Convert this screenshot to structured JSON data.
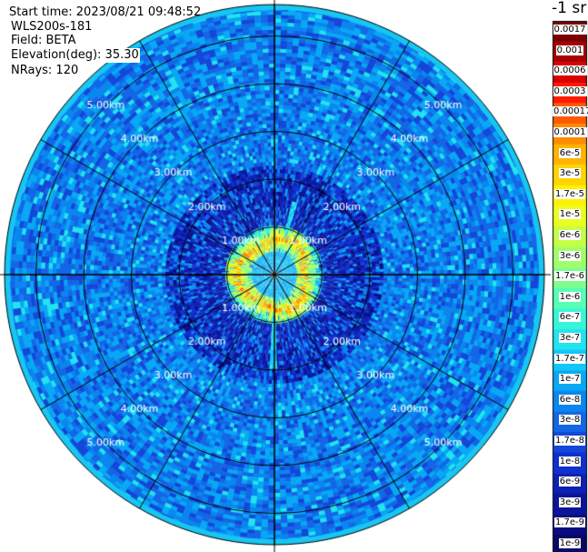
{
  "header": {
    "start_time": "Start time: 2023/08/21 09:48:52",
    "instrument": "WLS200s-181",
    "field": "Field: BETA",
    "elevation": "Elevation(deg): 35.30",
    "nrays": "NRays: 120"
  },
  "colorbar": {
    "units": "-1 sr",
    "labels": [
      "0.0017",
      "0.001",
      "0.0006",
      "0.0003",
      "0.00017",
      "0.0001",
      "6e-5",
      "3e-5",
      "1.7e-5",
      "1e-5",
      "6e-6",
      "3e-6",
      "1.7e-6",
      "1e-6",
      "6e-7",
      "3e-7",
      "1.7e-7",
      "1e-7",
      "6e-8",
      "3e-8",
      "1.7e-8",
      "1e-8",
      "6e-9",
      "3e-9",
      "1.7e-9",
      "1e-9"
    ],
    "colors": [
      "#7a0000",
      "#a80000",
      "#d80000",
      "#ff1a00",
      "#ff5a00",
      "#ff8c00",
      "#ffb300",
      "#ffd400",
      "#fff200",
      "#e9ff21",
      "#c4ff45",
      "#a0ff69",
      "#7cff8d",
      "#55ffb3",
      "#35f7d8",
      "#22e3f0",
      "#12c6f7",
      "#08a8f5",
      "#0a86ef",
      "#1466e6",
      "#1446d8",
      "#1030d0",
      "#0c20b4",
      "#0b149a",
      "#0a0c80",
      "#080866"
    ]
  },
  "chart_data": {
    "type": "heatmap",
    "projection": "polar PPI",
    "field": "BETA",
    "n_rays": 120,
    "range_max_km": 5.6,
    "range_ring_labels": [
      "1.00km",
      "2.00km",
      "3.00km",
      "4.00km",
      "5.00km"
    ],
    "range_rings_km": [
      1,
      2,
      3,
      4,
      5
    ],
    "azimuth_spokes_deg": [
      0,
      30,
      60,
      90,
      120,
      150,
      180,
      210,
      240,
      270,
      300,
      330
    ],
    "colorscale": "log10, 1e-9 to 0.0017 sr^-1",
    "features": [
      {
        "type": "high backscatter ring",
        "range_km": [
          0.45,
          1.0
        ],
        "value_approx": "1e-5 to 6e-5"
      },
      {
        "type": "near-field noise",
        "range_km": [
          1.0,
          2.3
        ],
        "value_approx": "3e-9 to 3e-8"
      },
      {
        "type": "background",
        "range_km": [
          2.3,
          5.6
        ],
        "value_approx": "3e-8 to 3e-7"
      }
    ]
  }
}
